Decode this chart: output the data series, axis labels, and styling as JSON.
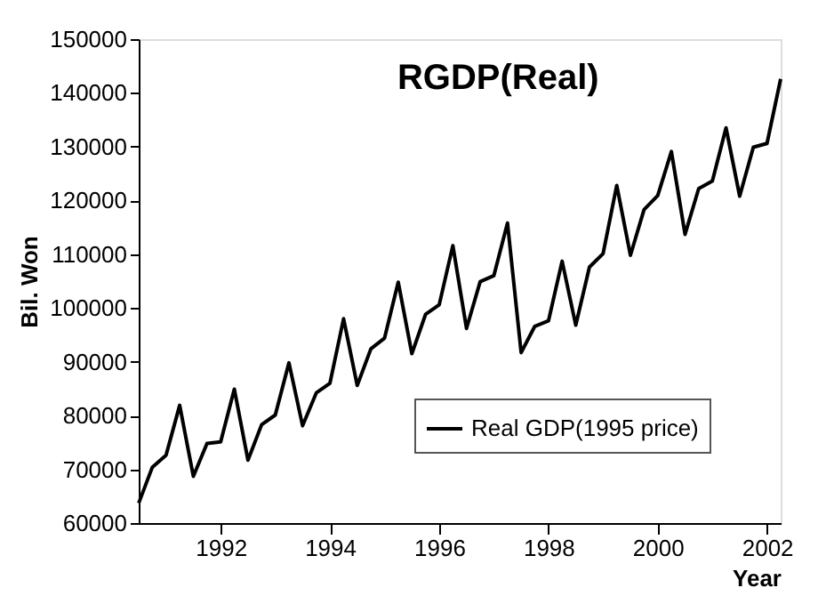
{
  "chart_data": {
    "type": "line",
    "title": "RGDP(Real)",
    "xlabel": "Year",
    "ylabel": "Bil. Won",
    "x": [
      1991,
      1991.25,
      1991.5,
      1991.75,
      1992,
      1992.25,
      1992.5,
      1992.75,
      1993,
      1993.25,
      1993.5,
      1993.75,
      1994,
      1994.25,
      1994.5,
      1994.75,
      1995,
      1995.25,
      1995.5,
      1995.75,
      1996,
      1996.25,
      1996.5,
      1996.75,
      1997,
      1997.25,
      1997.5,
      1997.75,
      1998,
      1998.25,
      1998.5,
      1998.75,
      1999,
      1999.25,
      1999.5,
      1999.75,
      2000,
      2000.25,
      2000.5,
      2000.75,
      2001,
      2001.25,
      2001.5,
      2001.75,
      2002,
      2002.25,
      2002.5,
      2002.75
    ],
    "series": [
      {
        "name": "Real GDP(1995 price)",
        "color": "#000000",
        "values": [
          63700,
          70400,
          72600,
          81900,
          68700,
          74800,
          75100,
          84900,
          71700,
          78300,
          80100,
          89800,
          78100,
          84200,
          86000,
          98000,
          85600,
          92400,
          94400,
          104800,
          91500,
          98800,
          100600,
          111600,
          96200,
          104900,
          106000,
          115800,
          91700,
          96600,
          97600,
          108700,
          96800,
          107600,
          110100,
          122800,
          109800,
          118300,
          120900,
          129100,
          113700,
          122200,
          123600,
          133500,
          120800,
          129900,
          130600,
          142600
        ]
      }
    ],
    "xlim": [
      1991,
      2002.75
    ],
    "ylim": [
      60000,
      150000
    ],
    "xticks": [
      {
        "value": 1992.5,
        "label": "1992"
      },
      {
        "value": 1994.5,
        "label": "1994"
      },
      {
        "value": 1996.5,
        "label": "1996"
      },
      {
        "value": 1998.5,
        "label": "1998"
      },
      {
        "value": 2000.5,
        "label": "2000"
      },
      {
        "value": 2002.5,
        "label": "2002"
      }
    ],
    "yticks": [
      60000,
      70000,
      80000,
      90000,
      100000,
      110000,
      120000,
      130000,
      140000,
      150000
    ],
    "grid": false,
    "legend": "bottom right",
    "marker": "none",
    "line_style": "solid"
  }
}
